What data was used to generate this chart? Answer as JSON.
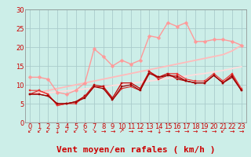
{
  "background_color": "#cceee8",
  "grid_color": "#aacccc",
  "xlabel": "Vent moyen/en rafales ( km/h )",
  "xlim": [
    -0.5,
    23.5
  ],
  "ylim": [
    0,
    30
  ],
  "yticks": [
    0,
    5,
    10,
    15,
    20,
    25,
    30
  ],
  "xticks": [
    0,
    1,
    2,
    3,
    4,
    5,
    6,
    7,
    8,
    9,
    10,
    11,
    12,
    13,
    14,
    15,
    16,
    17,
    18,
    19,
    20,
    21,
    22,
    23
  ],
  "x": [
    0,
    1,
    2,
    3,
    4,
    5,
    6,
    7,
    8,
    9,
    10,
    11,
    12,
    13,
    14,
    15,
    16,
    17,
    18,
    19,
    20,
    21,
    22,
    23
  ],
  "lines": [
    {
      "y": [
        7.5,
        8.5,
        7.5,
        4.5,
        5.0,
        5.0,
        7.0,
        9.5,
        9.5,
        6.0,
        9.0,
        9.5,
        8.5,
        13.5,
        11.5,
        12.5,
        12.5,
        11.0,
        10.5,
        10.5,
        12.5,
        10.5,
        12.5,
        8.5
      ],
      "color": "#dd2222",
      "lw": 0.8,
      "marker": "s",
      "ms": 2.0,
      "zorder": 4
    },
    {
      "y": [
        8.5,
        8.5,
        7.5,
        4.5,
        5.0,
        5.5,
        7.0,
        9.5,
        9.5,
        6.5,
        10.5,
        10.5,
        9.0,
        13.5,
        12.0,
        13.0,
        13.0,
        11.5,
        11.0,
        11.0,
        13.0,
        11.0,
        13.0,
        9.0
      ],
      "color": "#ee3333",
      "lw": 0.8,
      "marker": "s",
      "ms": 2.0,
      "zorder": 4
    },
    {
      "y": [
        7.5,
        7.5,
        7.0,
        5.0,
        5.0,
        5.5,
        7.0,
        10.0,
        9.5,
        6.5,
        10.5,
        10.5,
        9.0,
        13.5,
        12.0,
        13.0,
        11.5,
        11.0,
        10.5,
        10.5,
        12.5,
        10.5,
        12.5,
        8.5
      ],
      "color": "#bb1111",
      "lw": 0.8,
      "marker": "s",
      "ms": 2.0,
      "zorder": 4
    },
    {
      "y": [
        12.0,
        12.0,
        11.5,
        8.0,
        7.5,
        8.5,
        10.5,
        19.5,
        17.5,
        15.0,
        16.5,
        15.5,
        16.5,
        23.0,
        22.5,
        26.5,
        25.5,
        26.5,
        21.5,
        21.5,
        22.0,
        22.0,
        21.5,
        20.5
      ],
      "color": "#ff9999",
      "lw": 1.0,
      "marker": "D",
      "ms": 2.5,
      "zorder": 3
    },
    {
      "y": [
        7.5,
        7.5,
        7.0,
        5.0,
        5.0,
        5.5,
        6.5,
        9.5,
        9.0,
        6.0,
        9.5,
        10.0,
        8.5,
        13.0,
        12.0,
        12.5,
        12.0,
        11.0,
        10.5,
        10.5,
        12.5,
        10.5,
        12.0,
        8.5
      ],
      "color": "#990000",
      "lw": 0.9,
      "marker": "s",
      "ms": 2.0,
      "zorder": 4
    },
    {
      "y": [
        7.5,
        8.0,
        8.5,
        9.0,
        9.5,
        10.0,
        10.5,
        11.0,
        11.5,
        12.0,
        12.5,
        13.0,
        13.5,
        14.0,
        14.5,
        15.0,
        15.5,
        16.0,
        16.5,
        17.0,
        17.5,
        18.0,
        19.0,
        20.5
      ],
      "color": "#ffbbbb",
      "lw": 1.3,
      "marker": null,
      "ms": 0,
      "zorder": 2
    },
    {
      "y": [
        7.5,
        7.7,
        7.9,
        8.1,
        8.4,
        8.6,
        8.9,
        9.2,
        9.5,
        9.8,
        10.1,
        10.4,
        10.7,
        11.0,
        11.3,
        11.7,
        12.0,
        12.3,
        12.7,
        13.0,
        13.4,
        13.8,
        14.3,
        14.8
      ],
      "color": "#ffdddd",
      "lw": 1.3,
      "marker": null,
      "ms": 0,
      "zorder": 2
    }
  ],
  "wind_arrows": [
    "↙",
    "↙",
    "↙",
    "↓",
    "↙",
    "↙",
    "↘",
    "↘",
    "→",
    "→",
    "↗",
    "→",
    "→",
    "→",
    "↓",
    "→",
    "→",
    "→",
    "→",
    "→",
    "→",
    "↙",
    "→",
    "→"
  ],
  "xlabel_color": "#cc0000",
  "xlabel_fontsize": 8,
  "tick_color": "#cc0000",
  "tick_fontsize": 6
}
